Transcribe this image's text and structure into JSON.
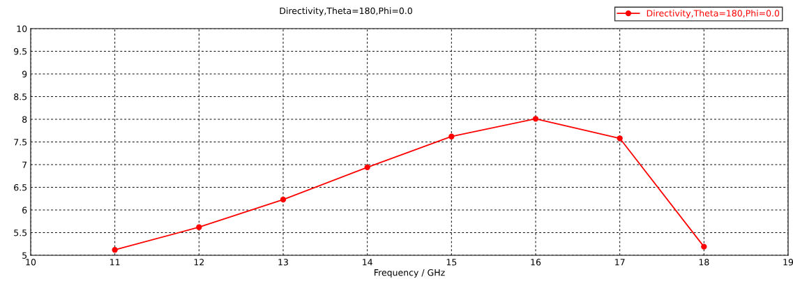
{
  "chart_data": {
    "type": "line",
    "title": "Directivity,Theta=180,Phi=0.0",
    "xlabel": "Frequency / GHz",
    "x": [
      11,
      12,
      13,
      14,
      15,
      16,
      17,
      18
    ],
    "series": [
      {
        "name": "Directivity,Theta=180,Phi=0.0",
        "color": "#ff0000",
        "values": [
          5.12,
          5.62,
          6.23,
          6.94,
          7.62,
          8.01,
          7.58,
          5.19
        ]
      }
    ],
    "xlim": [
      10,
      19
    ],
    "xticks": [
      10,
      11,
      12,
      13,
      14,
      15,
      16,
      17,
      18,
      19
    ],
    "ylim": [
      5,
      10
    ],
    "yticks": [
      5,
      5.5,
      6,
      6.5,
      7,
      7.5,
      8,
      8.5,
      9,
      9.5,
      10
    ],
    "grid": true,
    "legend": "top right",
    "marker": "circle",
    "line_style": "solid"
  }
}
